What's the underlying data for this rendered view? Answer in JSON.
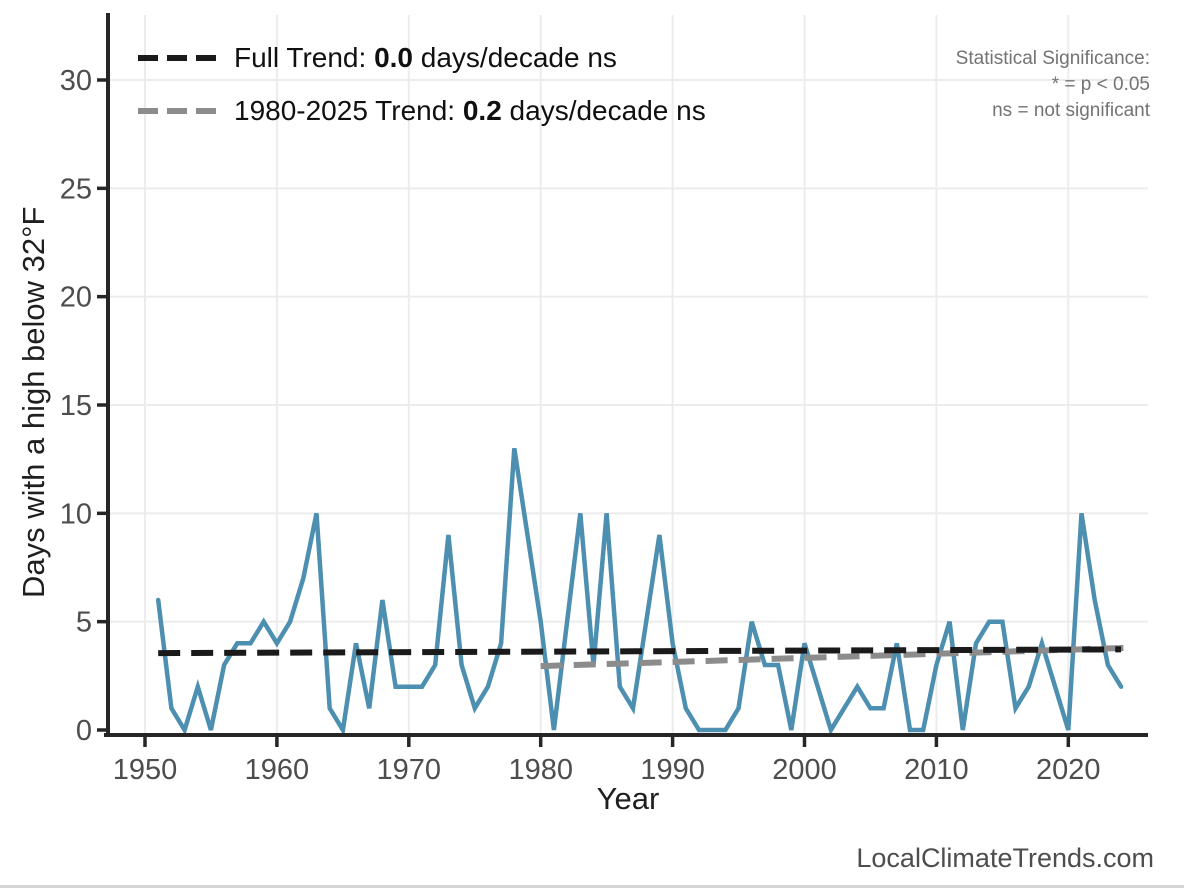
{
  "watermark": {
    "text": "LocalClimateTrends.com"
  },
  "annotation": {
    "lines": [
      "Statistical Significance:",
      "* = p < 0.05",
      "ns = not significant"
    ]
  },
  "legend": {
    "items": [
      {
        "prefix": "Full Trend: ",
        "value": "0.0",
        "suffix": " days/decade ns",
        "color": "#1a1a1a"
      },
      {
        "prefix": "1980-2025 Trend: ",
        "value": "0.2",
        "suffix": " days/decade ns",
        "color": "#8c8c8c"
      }
    ]
  },
  "chart_data": {
    "type": "line",
    "title": "",
    "xlabel": "Year",
    "ylabel": "Days with a high below 32°F",
    "x_ticks": [
      1950,
      1960,
      1970,
      1980,
      1990,
      2000,
      2010,
      2020
    ],
    "y_ticks": [
      0,
      5,
      10,
      15,
      20,
      25,
      30
    ],
    "xlim": [
      1947.2,
      2026
    ],
    "ylim": [
      0,
      33
    ],
    "grid": true,
    "legend_position": "top-left",
    "line_color": "#4d8fb0",
    "axis_color": "#262626",
    "grid_color": "#ececec",
    "tick_label_color": "#4d4d4d",
    "series": [
      {
        "name": "Days with a high below 32°F",
        "x": [
          1951,
          1952,
          1953,
          1954,
          1955,
          1956,
          1957,
          1958,
          1959,
          1960,
          1961,
          1962,
          1963,
          1964,
          1965,
          1966,
          1967,
          1968,
          1969,
          1970,
          1971,
          1972,
          1973,
          1974,
          1975,
          1976,
          1977,
          1978,
          1979,
          1980,
          1981,
          1982,
          1983,
          1984,
          1985,
          1986,
          1987,
          1988,
          1989,
          1990,
          1991,
          1992,
          1993,
          1994,
          1995,
          1996,
          1997,
          1998,
          1999,
          2000,
          2001,
          2002,
          2003,
          2004,
          2005,
          2006,
          2007,
          2008,
          2009,
          2010,
          2011,
          2012,
          2013,
          2014,
          2015,
          2016,
          2017,
          2018,
          2019,
          2020,
          2021,
          2022,
          2023,
          2024
        ],
        "values": [
          6,
          1,
          0,
          2,
          0,
          3,
          4,
          4,
          5,
          4,
          5,
          7,
          10,
          1,
          0,
          4,
          1,
          6,
          2,
          2,
          2,
          3,
          9,
          3,
          1,
          2,
          4,
          13,
          9,
          5,
          0,
          5,
          10,
          3,
          10,
          2,
          1,
          5,
          9,
          4,
          1,
          0,
          0,
          0,
          1,
          5,
          3,
          3,
          0,
          4,
          2,
          0,
          1,
          2,
          1,
          1,
          4,
          0,
          0,
          3,
          5,
          0,
          4,
          5,
          5,
          1,
          2,
          4,
          2,
          0,
          10,
          6,
          3,
          2
        ]
      }
    ],
    "trends": [
      {
        "name": "Full Trend",
        "slope": "0.0",
        "units": "days/decade",
        "significance": "ns",
        "color": "#1a1a1a",
        "x1": 1951,
        "y1": 3.55,
        "x2": 2024,
        "y2": 3.72
      },
      {
        "name": "1980-2025 Trend",
        "slope": "0.2",
        "units": "days/decade",
        "significance": "ns",
        "color": "#8c8c8c",
        "x1": 1980,
        "y1": 2.95,
        "x2": 2025,
        "y2": 3.8
      }
    ]
  }
}
